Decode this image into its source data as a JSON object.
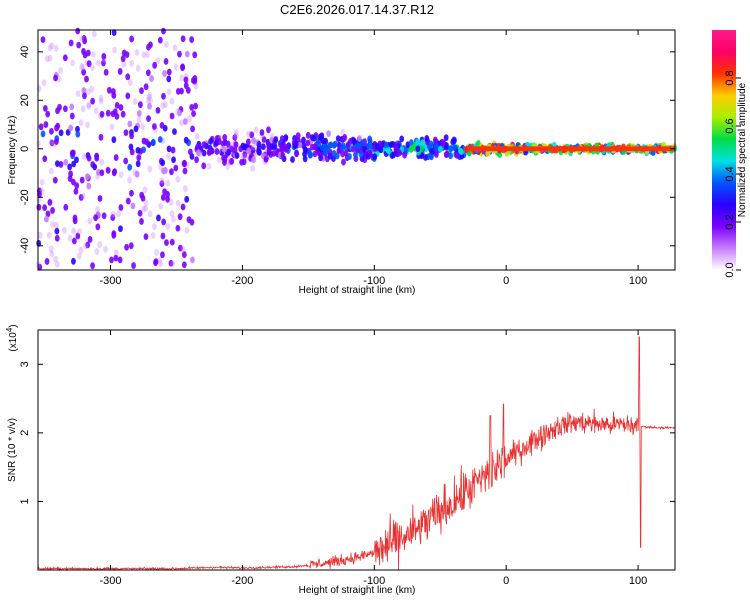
{
  "title": "C2E6.2026.017.14.37.R12",
  "chart_data": [
    {
      "type": "heatmap",
      "name": "spectrogram",
      "xlabel": "Height of straight line (km)",
      "ylabel": "Frequency (Hz)",
      "xlim": [
        -355,
        128
      ],
      "ylim": [
        -50,
        49
      ],
      "xticks": [
        -300,
        -200,
        -100,
        0,
        100
      ],
      "yticks": [
        -40,
        -20,
        0,
        20,
        40
      ],
      "colorbar": {
        "label": "Normalized spectral amplitude",
        "range": [
          0,
          1
        ],
        "ticks": [
          0.0,
          0.2,
          0.4,
          0.6,
          0.8
        ],
        "tick_labels": [
          "0.0",
          "0.2",
          "0.4",
          "0.6",
          "0.8"
        ],
        "colormap": [
          "#ffffff",
          "#c77dff",
          "#7a00ff",
          "#2a00ff",
          "#0055ff",
          "#00e0e0",
          "#00dd44",
          "#aaee00",
          "#ffcc00",
          "#ff3300",
          "#ff0066",
          "#ff1a8c"
        ]
      },
      "bands": [
        {
          "x": [
            -355,
            -235
          ],
          "freq_spread": 49,
          "amplitude": 0.18
        },
        {
          "x": [
            -235,
            -180
          ],
          "freq_spread": 10,
          "amplitude": 0.2
        },
        {
          "x": [
            -180,
            -100
          ],
          "freq_spread": 8,
          "amplitude": 0.3
        },
        {
          "x": [
            -100,
            -30
          ],
          "freq_spread": 6,
          "amplitude": 0.4
        },
        {
          "x": [
            -30,
            10
          ],
          "freq_spread": 3,
          "amplitude": 0.8
        },
        {
          "x": [
            10,
            128
          ],
          "freq_spread": 2,
          "amplitude": 0.75
        }
      ]
    },
    {
      "type": "line",
      "name": "snr",
      "xlabel": "Height of straight line (km)",
      "ylabel": "SNR (10 * v/v)",
      "scale_label": "(x10",
      "scale_exponent": "4",
      "xlim": [
        -355,
        128
      ],
      "ylim": [
        0,
        3.5
      ],
      "xticks": [
        -300,
        -200,
        -100,
        0,
        100
      ],
      "yticks": [
        1,
        2,
        3
      ],
      "color": "#e83030",
      "series_points": [
        [
          -355,
          0.02
        ],
        [
          -300,
          0.02
        ],
        [
          -250,
          0.02
        ],
        [
          -220,
          0.04
        ],
        [
          -200,
          0.03
        ],
        [
          -180,
          0.04
        ],
        [
          -160,
          0.05
        ],
        [
          -150,
          0.07
        ],
        [
          -130,
          0.12
        ],
        [
          -110,
          0.2
        ],
        [
          -100,
          0.25
        ],
        [
          -90,
          0.35
        ],
        [
          -80,
          0.45
        ],
        [
          -70,
          0.55
        ],
        [
          -60,
          0.7
        ],
        [
          -50,
          0.85
        ],
        [
          -40,
          1.0
        ],
        [
          -30,
          1.15
        ],
        [
          -20,
          1.3
        ],
        [
          -10,
          1.45
        ],
        [
          0,
          1.6
        ],
        [
          10,
          1.75
        ],
        [
          20,
          1.88
        ],
        [
          30,
          2.0
        ],
        [
          40,
          2.1
        ],
        [
          50,
          2.15
        ],
        [
          60,
          2.15
        ],
        [
          70,
          2.13
        ],
        [
          80,
          2.12
        ],
        [
          90,
          2.12
        ],
        [
          100,
          2.1
        ],
        [
          110,
          2.08
        ],
        [
          128,
          2.07
        ]
      ],
      "spikes": [
        {
          "x": -12,
          "y": 2.25
        },
        {
          "x": -2,
          "y": 2.42
        },
        {
          "x": 101,
          "y": 3.4
        },
        {
          "x": 102,
          "y": 0.33
        }
      ]
    }
  ]
}
